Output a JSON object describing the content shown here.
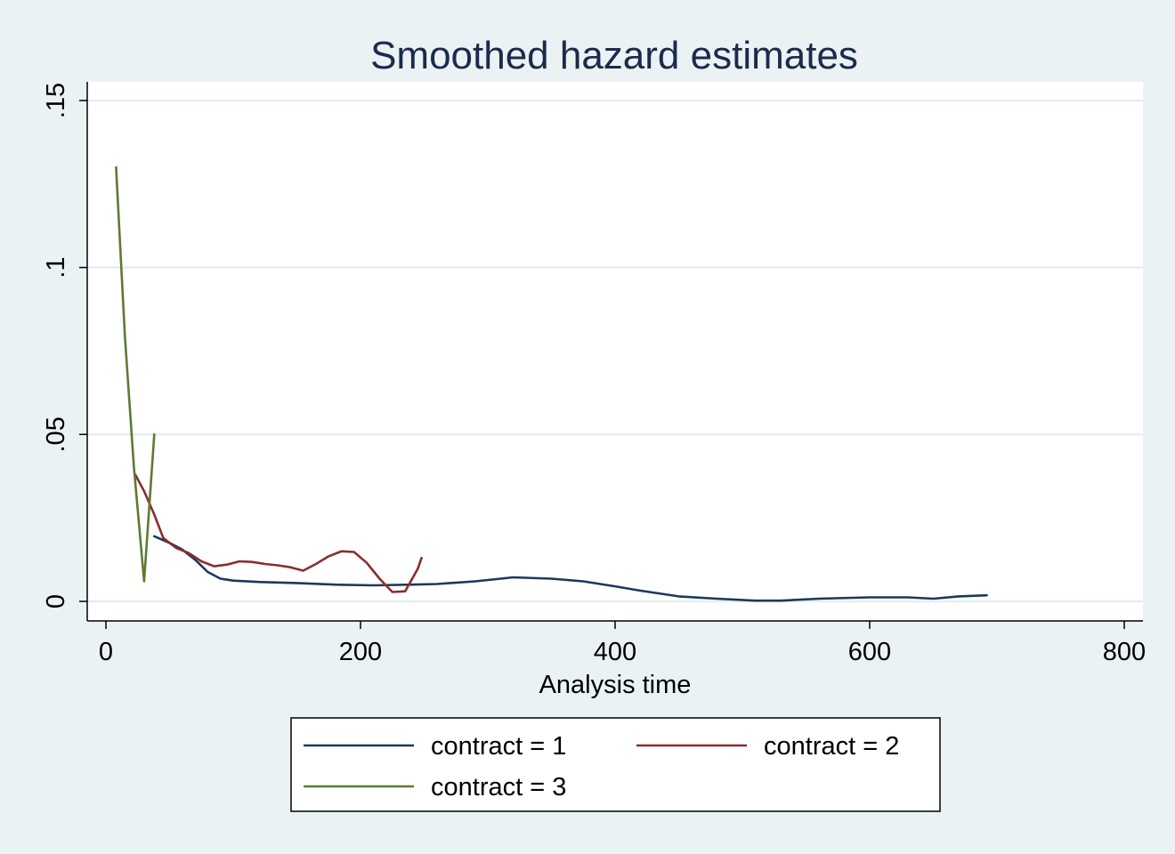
{
  "chart_data": {
    "type": "line",
    "title": "Smoothed hazard estimates",
    "xlabel": "Analysis time",
    "ylabel": "",
    "xlim": [
      0,
      800
    ],
    "ylim": [
      0,
      0.15
    ],
    "x_ticks": [
      0,
      200,
      400,
      600,
      800
    ],
    "x_tick_labels": [
      "0",
      "200",
      "400",
      "600",
      "800"
    ],
    "y_ticks": [
      0,
      0.05,
      0.1,
      0.15
    ],
    "y_tick_labels": [
      "0",
      ".05",
      ".1",
      ".15"
    ],
    "grid": true,
    "legend_position": "bottom",
    "series": [
      {
        "name": "contract = 1",
        "color": "#1a3a5c",
        "x": [
          38,
          50,
          60,
          70,
          80,
          90,
          100,
          120,
          150,
          180,
          210,
          240,
          260,
          290,
          320,
          350,
          375,
          400,
          420,
          450,
          480,
          510,
          530,
          560,
          600,
          630,
          650,
          670,
          692
        ],
        "y": [
          0.0195,
          0.0175,
          0.0155,
          0.0125,
          0.0088,
          0.0068,
          0.0062,
          0.0058,
          0.0055,
          0.005,
          0.0048,
          0.005,
          0.0052,
          0.006,
          0.0072,
          0.0068,
          0.006,
          0.0045,
          0.0032,
          0.0015,
          0.0008,
          0.0002,
          0.0002,
          0.0008,
          0.0012,
          0.0012,
          0.0008,
          0.0015,
          0.0018
        ]
      },
      {
        "name": "contract = 2",
        "color": "#8b2d2d",
        "x": [
          23,
          30,
          38,
          45,
          55,
          65,
          75,
          85,
          95,
          105,
          115,
          125,
          135,
          145,
          155,
          165,
          175,
          185,
          195,
          205,
          215,
          225,
          235,
          245,
          248
        ],
        "y": [
          0.038,
          0.033,
          0.026,
          0.019,
          0.016,
          0.0145,
          0.012,
          0.0105,
          0.011,
          0.012,
          0.0118,
          0.0112,
          0.0108,
          0.0102,
          0.0092,
          0.0112,
          0.0135,
          0.015,
          0.0148,
          0.0115,
          0.0068,
          0.0028,
          0.003,
          0.0098,
          0.013
        ]
      },
      {
        "name": "contract = 3",
        "color": "#5f7a33",
        "x": [
          8,
          15,
          22,
          30,
          38
        ],
        "y": [
          0.13,
          0.079,
          0.04,
          0.006,
          0.05
        ]
      }
    ]
  }
}
